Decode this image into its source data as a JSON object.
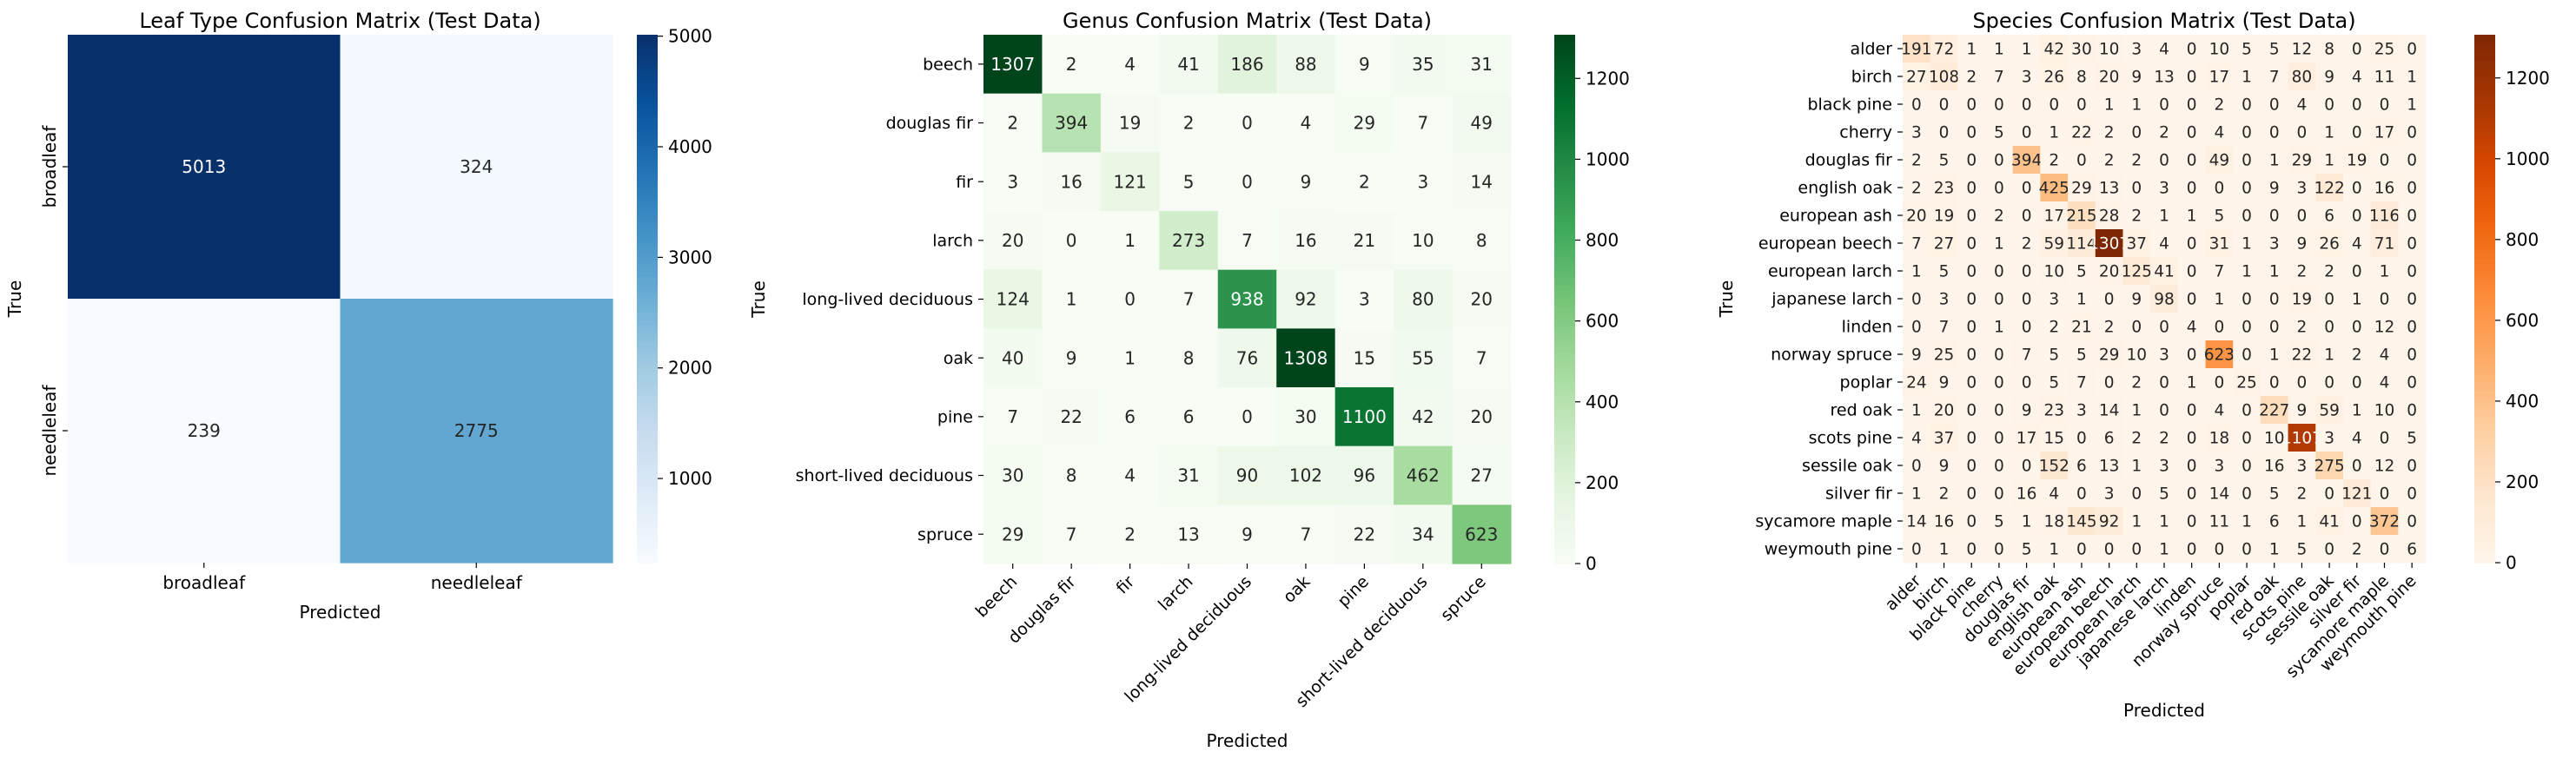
{
  "chart_data": [
    {
      "type": "heatmap",
      "title": "Leaf Type Confusion Matrix (Test Data)",
      "xlabel": "Predicted",
      "ylabel": "True",
      "colormap": "Blues",
      "colorbar_range": [
        239,
        5013
      ],
      "colorbar_ticks": [
        1000,
        2000,
        3000,
        4000,
        5000
      ],
      "categories": [
        "broadleaf",
        "needleleaf"
      ],
      "matrix": [
        [
          5013,
          324
        ],
        [
          239,
          2775
        ]
      ]
    },
    {
      "type": "heatmap",
      "title": "Genus Confusion Matrix (Test Data)",
      "xlabel": "Predicted",
      "ylabel": "True",
      "colormap": "Greens",
      "colorbar_range": [
        0,
        1308
      ],
      "colorbar_ticks": [
        0,
        200,
        400,
        600,
        800,
        1000,
        1200
      ],
      "categories": [
        "beech",
        "douglas fir",
        "fir",
        "larch",
        "long-lived deciduous",
        "oak",
        "pine",
        "short-lived deciduous",
        "spruce"
      ],
      "matrix": [
        [
          1307,
          2,
          4,
          41,
          186,
          88,
          9,
          35,
          31
        ],
        [
          2,
          394,
          19,
          2,
          0,
          4,
          29,
          7,
          49
        ],
        [
          3,
          16,
          121,
          5,
          0,
          9,
          2,
          3,
          14
        ],
        [
          20,
          0,
          1,
          273,
          7,
          16,
          21,
          10,
          8
        ],
        [
          124,
          1,
          0,
          7,
          938,
          92,
          3,
          80,
          20
        ],
        [
          40,
          9,
          1,
          8,
          76,
          1308,
          15,
          55,
          7
        ],
        [
          7,
          22,
          6,
          6,
          0,
          30,
          1100,
          42,
          20
        ],
        [
          30,
          8,
          4,
          31,
          90,
          102,
          96,
          462,
          27
        ],
        [
          29,
          7,
          2,
          13,
          9,
          7,
          22,
          34,
          623
        ]
      ]
    },
    {
      "type": "heatmap",
      "title": "Species Confusion Matrix (Test Data)",
      "xlabel": "Predicted",
      "ylabel": "True",
      "colormap": "Oranges",
      "colorbar_range": [
        0,
        1307
      ],
      "colorbar_ticks": [
        0,
        200,
        400,
        600,
        800,
        1000,
        1200
      ],
      "categories": [
        "alder",
        "birch",
        "black pine",
        "cherry",
        "douglas fir",
        "english oak",
        "european ash",
        "european beech",
        "european larch",
        "japanese larch",
        "linden",
        "norway spruce",
        "poplar",
        "red oak",
        "scots pine",
        "sessile oak",
        "silver fir",
        "sycamore maple",
        "weymouth pine"
      ],
      "matrix": [
        [
          191,
          72,
          1,
          1,
          1,
          42,
          30,
          10,
          3,
          4,
          0,
          10,
          5,
          5,
          12,
          8,
          0,
          25,
          0
        ],
        [
          27,
          108,
          2,
          7,
          3,
          26,
          8,
          20,
          9,
          13,
          0,
          17,
          1,
          7,
          80,
          9,
          4,
          11,
          1
        ],
        [
          0,
          0,
          0,
          0,
          0,
          0,
          0,
          1,
          1,
          0,
          0,
          2,
          0,
          0,
          4,
          0,
          0,
          0,
          1
        ],
        [
          3,
          0,
          0,
          5,
          0,
          1,
          22,
          2,
          0,
          2,
          0,
          4,
          0,
          0,
          0,
          1,
          0,
          17,
          0
        ],
        [
          2,
          5,
          0,
          0,
          394,
          2,
          0,
          2,
          2,
          0,
          0,
          49,
          0,
          1,
          29,
          1,
          19,
          0,
          0
        ],
        [
          2,
          23,
          0,
          0,
          0,
          425,
          29,
          13,
          0,
          3,
          0,
          0,
          0,
          9,
          3,
          122,
          0,
          16,
          0
        ],
        [
          20,
          19,
          0,
          2,
          0,
          17,
          215,
          28,
          2,
          1,
          1,
          5,
          0,
          0,
          0,
          6,
          0,
          116,
          0
        ],
        [
          7,
          27,
          0,
          1,
          2,
          59,
          114,
          1307,
          37,
          4,
          0,
          31,
          1,
          3,
          9,
          26,
          4,
          71,
          0
        ],
        [
          1,
          5,
          0,
          0,
          0,
          10,
          5,
          20,
          125,
          41,
          0,
          7,
          1,
          1,
          2,
          2,
          0,
          1,
          0
        ],
        [
          0,
          3,
          0,
          0,
          0,
          3,
          1,
          0,
          9,
          98,
          0,
          1,
          0,
          0,
          19,
          0,
          1,
          0,
          0
        ],
        [
          0,
          7,
          0,
          1,
          0,
          2,
          21,
          2,
          0,
          0,
          4,
          0,
          0,
          0,
          2,
          0,
          0,
          12,
          0
        ],
        [
          9,
          25,
          0,
          0,
          7,
          5,
          5,
          29,
          10,
          3,
          0,
          623,
          0,
          1,
          22,
          1,
          2,
          4,
          0
        ],
        [
          24,
          9,
          0,
          0,
          0,
          5,
          7,
          0,
          2,
          0,
          1,
          0,
          25,
          0,
          0,
          0,
          0,
          4,
          0
        ],
        [
          1,
          20,
          0,
          0,
          9,
          23,
          3,
          14,
          1,
          0,
          0,
          4,
          0,
          227,
          9,
          59,
          1,
          10,
          0
        ],
        [
          4,
          37,
          0,
          0,
          17,
          15,
          0,
          6,
          2,
          2,
          0,
          18,
          0,
          10,
          1107,
          3,
          4,
          0,
          5
        ],
        [
          0,
          9,
          0,
          0,
          0,
          152,
          6,
          13,
          1,
          3,
          0,
          3,
          0,
          16,
          3,
          275,
          0,
          12,
          0
        ],
        [
          1,
          2,
          0,
          0,
          16,
          4,
          0,
          3,
          0,
          5,
          0,
          14,
          0,
          5,
          2,
          0,
          121,
          0,
          0
        ],
        [
          14,
          16,
          0,
          5,
          1,
          18,
          145,
          92,
          1,
          1,
          0,
          11,
          1,
          6,
          1,
          41,
          0,
          372,
          0
        ],
        [
          0,
          1,
          0,
          0,
          5,
          1,
          0,
          0,
          0,
          1,
          0,
          0,
          0,
          1,
          5,
          0,
          2,
          0,
          6
        ]
      ]
    }
  ]
}
